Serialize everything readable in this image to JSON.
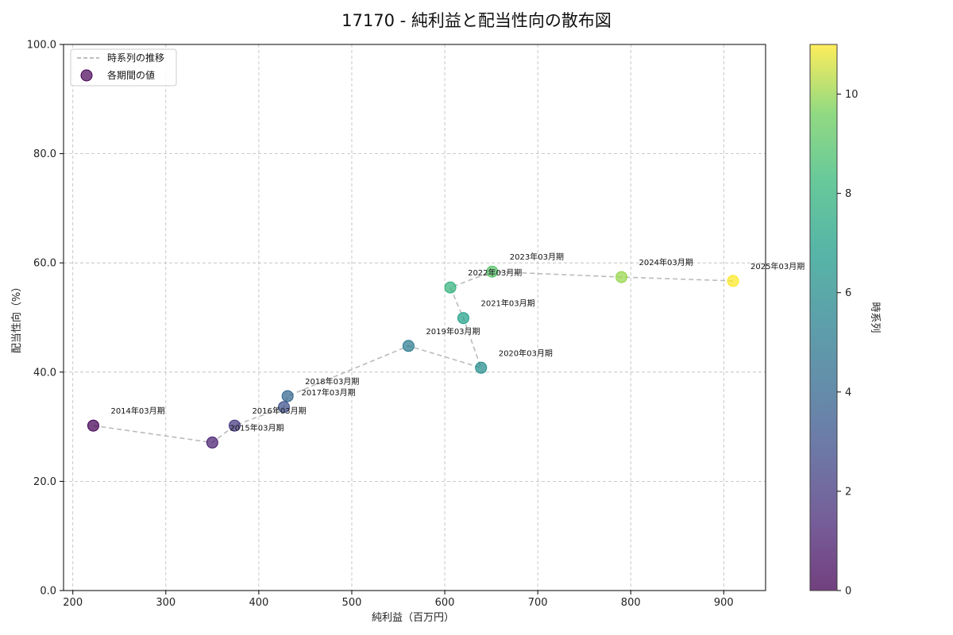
{
  "chart_data": {
    "type": "scatter",
    "title": "17170 - 純利益と配当性向の散布図",
    "xlabel": "純利益（百万円）",
    "ylabel": "配当性向（%）",
    "xlim": [
      190,
      945
    ],
    "ylim": [
      0,
      100
    ],
    "xticks": [
      200,
      300,
      400,
      500,
      600,
      700,
      800,
      900
    ],
    "yticks": [
      0,
      20,
      40,
      60,
      80,
      100
    ],
    "ytick_labels": [
      "0.0",
      "20.0",
      "40.0",
      "60.0",
      "80.0",
      "100.0"
    ],
    "grid": true,
    "legend_position": "top-left",
    "legend": {
      "line_label": "時系列の推移",
      "points_label": "各期間の値"
    },
    "colorbar": {
      "label": "時系列",
      "min": 0,
      "max": 11,
      "ticks": [
        0,
        2,
        4,
        6,
        8,
        10
      ]
    },
    "points": [
      {
        "label": "2014年03月期",
        "x": 222,
        "y": 30.2,
        "t": 0
      },
      {
        "label": "2015年03月期",
        "x": 350,
        "y": 27.1,
        "t": 1
      },
      {
        "label": "2016年03月期",
        "x": 374,
        "y": 30.2,
        "t": 2
      },
      {
        "label": "2017年03月期",
        "x": 427,
        "y": 33.6,
        "t": 3
      },
      {
        "label": "2018年03月期",
        "x": 431,
        "y": 35.6,
        "t": 4
      },
      {
        "label": "2019年03月期",
        "x": 561,
        "y": 44.8,
        "t": 5
      },
      {
        "label": "2020年03月期",
        "x": 639,
        "y": 40.8,
        "t": 6
      },
      {
        "label": "2021年03月期",
        "x": 620,
        "y": 49.9,
        "t": 7
      },
      {
        "label": "2022年03月期",
        "x": 606,
        "y": 55.5,
        "t": 8
      },
      {
        "label": "2023年03月期",
        "x": 651,
        "y": 58.4,
        "t": 9
      },
      {
        "label": "2024年03月期",
        "x": 790,
        "y": 57.4,
        "t": 10
      },
      {
        "label": "2025年03月期",
        "x": 910,
        "y": 56.7,
        "t": 11
      }
    ]
  }
}
